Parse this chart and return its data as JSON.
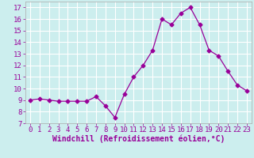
{
  "x": [
    0,
    1,
    2,
    3,
    4,
    5,
    6,
    7,
    8,
    9,
    10,
    11,
    12,
    13,
    14,
    15,
    16,
    17,
    18,
    19,
    20,
    21,
    22,
    23
  ],
  "y": [
    9.0,
    9.1,
    9.0,
    8.9,
    8.9,
    8.9,
    8.9,
    9.3,
    8.5,
    7.5,
    9.5,
    11.0,
    12.0,
    13.3,
    16.0,
    15.5,
    16.5,
    17.0,
    15.5,
    13.3,
    12.8,
    11.5,
    10.3,
    9.8
  ],
  "line_color": "#990099",
  "marker": "D",
  "marker_size": 2.5,
  "bg_color": "#cceeee",
  "grid_color": "#ffffff",
  "xlabel": "Windchill (Refroidissement éolien,°C)",
  "xlabel_fontsize": 7,
  "tick_fontsize": 6.5,
  "xlim": [
    -0.5,
    23.5
  ],
  "ylim": [
    7,
    17.5
  ],
  "yticks": [
    7,
    8,
    9,
    10,
    11,
    12,
    13,
    14,
    15,
    16,
    17
  ],
  "xticks": [
    0,
    1,
    2,
    3,
    4,
    5,
    6,
    7,
    8,
    9,
    10,
    11,
    12,
    13,
    14,
    15,
    16,
    17,
    18,
    19,
    20,
    21,
    22,
    23
  ]
}
